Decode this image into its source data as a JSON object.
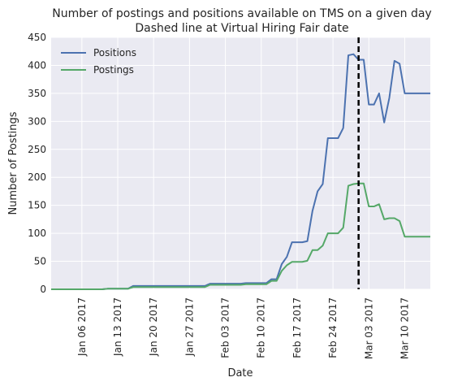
{
  "chart_data": {
    "type": "line",
    "title": "Number of postings and positions available on TMS on a given day",
    "subtitle": "Dashed line at Virtual Hiring Fair date",
    "xlabel": "Date",
    "ylabel": "Number of Postings",
    "xlim": [
      "2016-12-31",
      "2017-03-15"
    ],
    "ylim": [
      0,
      450
    ],
    "x_ticks": [
      "Jan 06 2017",
      "Jan 13 2017",
      "Jan 20 2017",
      "Jan 27 2017",
      "Feb 03 2017",
      "Feb 10 2017",
      "Feb 17 2017",
      "Feb 24 2017",
      "Mar 03 2017",
      "Mar 10 2017"
    ],
    "y_ticks": [
      0,
      50,
      100,
      150,
      200,
      250,
      300,
      350,
      400,
      450
    ],
    "grid": true,
    "legend_position": "top-left",
    "reference_line": {
      "x": "2017-03-01",
      "style": "dashed",
      "color": "#000000"
    },
    "series": [
      {
        "name": "Positions",
        "color": "#4c72b0",
        "points": [
          [
            "2016-12-31",
            0
          ],
          [
            "2017-01-10",
            0
          ],
          [
            "2017-01-11",
            1
          ],
          [
            "2017-01-15",
            1
          ],
          [
            "2017-01-16",
            6
          ],
          [
            "2017-01-30",
            6
          ],
          [
            "2017-01-31",
            10
          ],
          [
            "2017-02-06",
            10
          ],
          [
            "2017-02-07",
            11
          ],
          [
            "2017-02-11",
            11
          ],
          [
            "2017-02-12",
            18
          ],
          [
            "2017-02-13",
            18
          ],
          [
            "2017-02-14",
            45
          ],
          [
            "2017-02-15",
            58
          ],
          [
            "2017-02-16",
            84
          ],
          [
            "2017-02-18",
            84
          ],
          [
            "2017-02-19",
            86
          ],
          [
            "2017-02-20",
            140
          ],
          [
            "2017-02-21",
            175
          ],
          [
            "2017-02-22",
            188
          ],
          [
            "2017-02-23",
            270
          ],
          [
            "2017-02-25",
            270
          ],
          [
            "2017-02-26",
            288
          ],
          [
            "2017-02-27",
            418
          ],
          [
            "2017-02-28",
            420
          ],
          [
            "2017-03-01",
            410
          ],
          [
            "2017-03-02",
            410
          ],
          [
            "2017-03-03",
            330
          ],
          [
            "2017-03-04",
            330
          ],
          [
            "2017-03-05",
            350
          ],
          [
            "2017-03-06",
            298
          ],
          [
            "2017-03-07",
            342
          ],
          [
            "2017-03-08",
            408
          ],
          [
            "2017-03-09",
            403
          ],
          [
            "2017-03-10",
            350
          ],
          [
            "2017-03-15",
            350
          ]
        ]
      },
      {
        "name": "Postings",
        "color": "#55a868",
        "points": [
          [
            "2016-12-31",
            0
          ],
          [
            "2017-01-10",
            0
          ],
          [
            "2017-01-11",
            1
          ],
          [
            "2017-01-15",
            1
          ],
          [
            "2017-01-16",
            4
          ],
          [
            "2017-01-30",
            4
          ],
          [
            "2017-01-31",
            8
          ],
          [
            "2017-02-06",
            8
          ],
          [
            "2017-02-07",
            9
          ],
          [
            "2017-02-11",
            9
          ],
          [
            "2017-02-12",
            15
          ],
          [
            "2017-02-13",
            15
          ],
          [
            "2017-02-14",
            33
          ],
          [
            "2017-02-15",
            43
          ],
          [
            "2017-02-16",
            49
          ],
          [
            "2017-02-18",
            49
          ],
          [
            "2017-02-19",
            51
          ],
          [
            "2017-02-20",
            70
          ],
          [
            "2017-02-21",
            70
          ],
          [
            "2017-02-22",
            78
          ],
          [
            "2017-02-23",
            100
          ],
          [
            "2017-02-25",
            100
          ],
          [
            "2017-02-26",
            110
          ],
          [
            "2017-02-27",
            185
          ],
          [
            "2017-02-28",
            188
          ],
          [
            "2017-03-01",
            189
          ],
          [
            "2017-03-02",
            189
          ],
          [
            "2017-03-03",
            148
          ],
          [
            "2017-03-04",
            148
          ],
          [
            "2017-03-05",
            152
          ],
          [
            "2017-03-06",
            125
          ],
          [
            "2017-03-07",
            127
          ],
          [
            "2017-03-08",
            127
          ],
          [
            "2017-03-09",
            122
          ],
          [
            "2017-03-10",
            94
          ],
          [
            "2017-03-15",
            94
          ]
        ]
      }
    ]
  }
}
